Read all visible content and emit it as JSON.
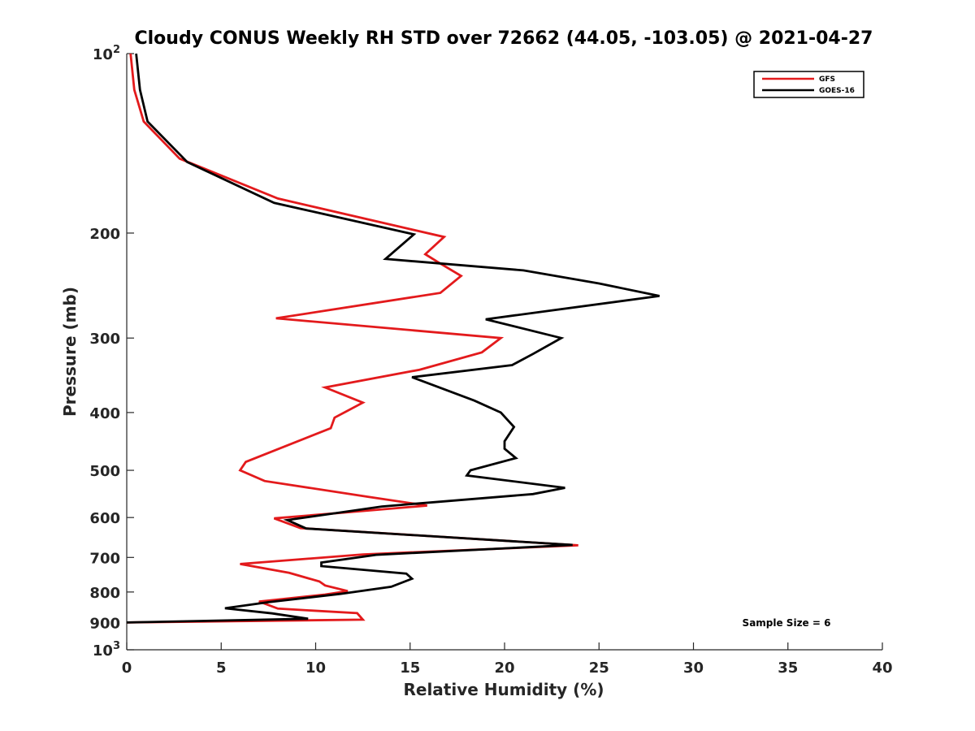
{
  "chart_data": {
    "type": "line",
    "title": "Cloudy CONUS Weekly RH STD over 72662 (44.05, -103.05) @ 2021-04-27",
    "xlabel": "Relative Humidity (%)",
    "ylabel": "Pressure (mb)",
    "xlim": [
      0,
      40
    ],
    "ylim": [
      100,
      1000
    ],
    "y_scale": "log",
    "y_reversed": true,
    "grid": false,
    "legend_position": "top-right",
    "x_ticks": [
      "0",
      "5",
      "10",
      "15",
      "20",
      "25",
      "30",
      "35",
      "40"
    ],
    "y_ticks": [
      {
        "value": 100,
        "base": "10",
        "exp": "2"
      },
      {
        "value": 200,
        "label": "200"
      },
      {
        "value": 300,
        "label": "300"
      },
      {
        "value": 400,
        "label": "400"
      },
      {
        "value": 500,
        "label": "500"
      },
      {
        "value": 600,
        "label": "600"
      },
      {
        "value": 700,
        "label": "700"
      },
      {
        "value": 800,
        "label": "800"
      },
      {
        "value": 900,
        "label": "900"
      },
      {
        "value": 1000,
        "base": "10",
        "exp": "3"
      }
    ],
    "series": [
      {
        "name": "GFS",
        "color": "#e31a1c",
        "points": [
          [
            0.2,
            100
          ],
          [
            0.4,
            115
          ],
          [
            0.9,
            130
          ],
          [
            2.8,
            150
          ],
          [
            8.0,
            175
          ],
          [
            16.8,
            203
          ],
          [
            15.8,
            217
          ],
          [
            16.5,
            224
          ],
          [
            17.7,
            236
          ],
          [
            16.6,
            252
          ],
          [
            7.9,
            278
          ],
          [
            19.8,
            300
          ],
          [
            18.8,
            317
          ],
          [
            15.5,
            339
          ],
          [
            10.5,
            363
          ],
          [
            12.5,
            385
          ],
          [
            11.0,
            408
          ],
          [
            10.8,
            425
          ],
          [
            6.3,
            484
          ],
          [
            6.0,
            500
          ],
          [
            7.3,
            521
          ],
          [
            12.8,
            554
          ],
          [
            15.9,
            573
          ],
          [
            12.5,
            585
          ],
          [
            7.8,
            602
          ],
          [
            9.2,
            625
          ],
          [
            23.9,
            668
          ],
          [
            12.5,
            692
          ],
          [
            6.0,
            718
          ],
          [
            8.6,
            743
          ],
          [
            10.2,
            768
          ],
          [
            10.5,
            780
          ],
          [
            11.7,
            797
          ],
          [
            10.5,
            808
          ],
          [
            7.0,
            830
          ],
          [
            8.0,
            853
          ],
          [
            12.2,
            868
          ],
          [
            12.5,
            890
          ],
          [
            0.0,
            900
          ]
        ]
      },
      {
        "name": "GOES-16",
        "color": "#000000",
        "points": [
          [
            0.5,
            100
          ],
          [
            0.7,
            115
          ],
          [
            1.1,
            130
          ],
          [
            3.2,
            152
          ],
          [
            7.8,
            178
          ],
          [
            15.2,
            201
          ],
          [
            13.7,
            221
          ],
          [
            21.0,
            231
          ],
          [
            25.0,
            243
          ],
          [
            28.2,
            255
          ],
          [
            19.0,
            279
          ],
          [
            23.0,
            300
          ],
          [
            21.5,
            319
          ],
          [
            20.4,
            333
          ],
          [
            15.1,
            349
          ],
          [
            18.4,
            382
          ],
          [
            19.8,
            400
          ],
          [
            20.5,
            423
          ],
          [
            20.0,
            447
          ],
          [
            20.0,
            460
          ],
          [
            20.6,
            477
          ],
          [
            18.2,
            500
          ],
          [
            18.0,
            510
          ],
          [
            23.2,
            535
          ],
          [
            21.5,
            548
          ],
          [
            13.5,
            575
          ],
          [
            8.5,
            606
          ],
          [
            9.5,
            626
          ],
          [
            23.6,
            667
          ],
          [
            13.2,
            693
          ],
          [
            10.3,
            714
          ],
          [
            10.3,
            724
          ],
          [
            14.8,
            745
          ],
          [
            15.1,
            760
          ],
          [
            14.0,
            784
          ],
          [
            11.3,
            806
          ],
          [
            7.5,
            832
          ],
          [
            5.2,
            852
          ],
          [
            7.7,
            869
          ],
          [
            9.6,
            887
          ],
          [
            0.0,
            900
          ]
        ]
      }
    ],
    "annotation": "Sample Size = 6"
  }
}
